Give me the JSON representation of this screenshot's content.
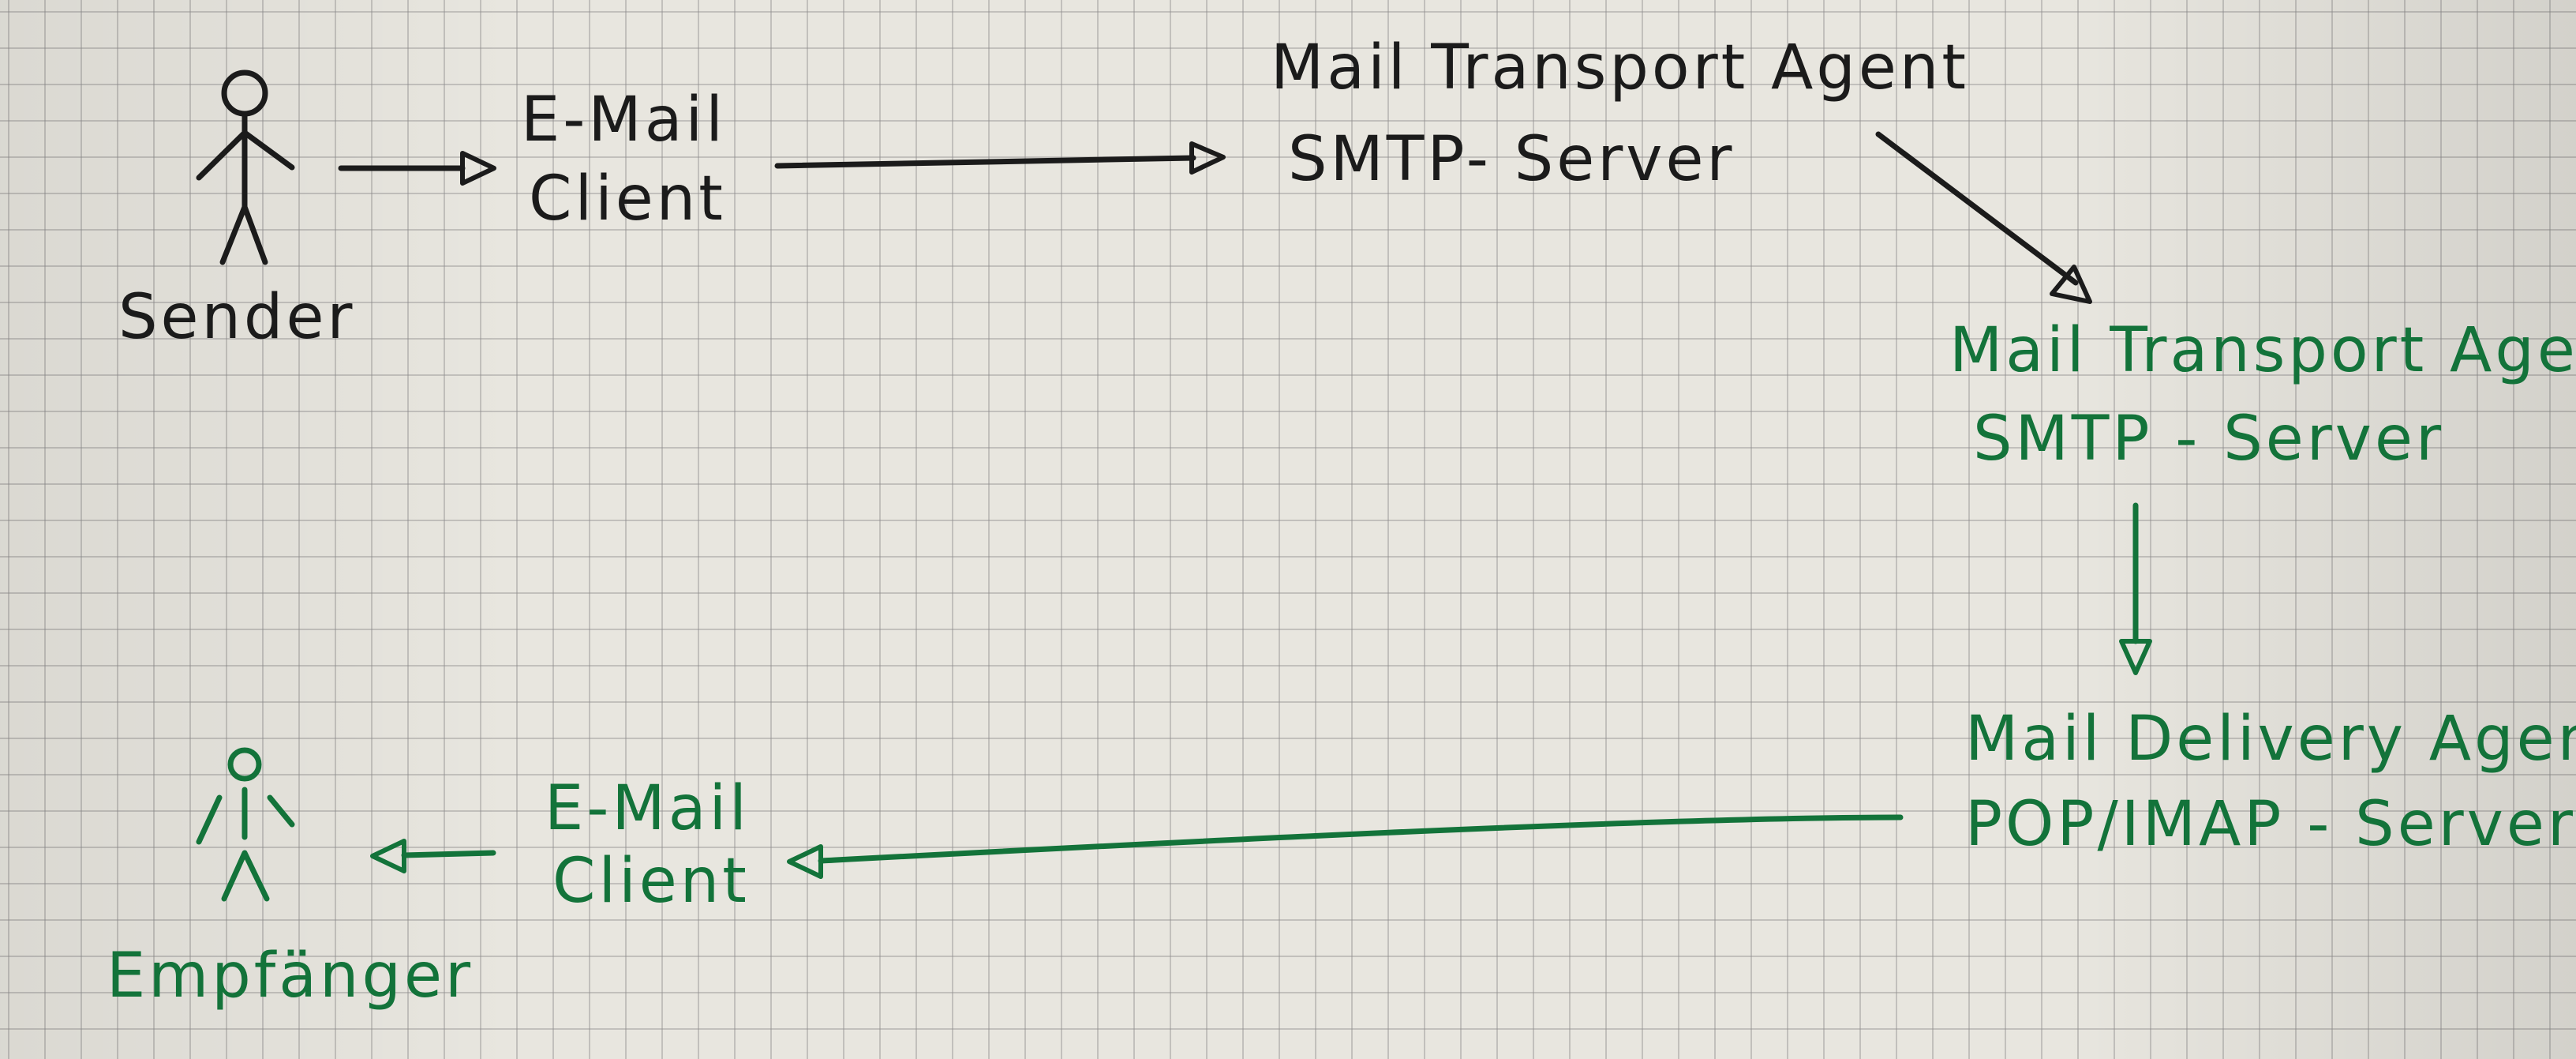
{
  "sender": {
    "label": "Sender"
  },
  "sender_client": {
    "line1": "E-Mail",
    "line2": "Client"
  },
  "mta_sender": {
    "line1": "Mail Transport Agent",
    "line2": "SMTP- Server"
  },
  "mta_receiver": {
    "line1": "Mail Transport Agent",
    "line2": "SMTP - Server"
  },
  "mda": {
    "line1": "Mail Delivery Agent",
    "line2": "POP/IMAP - Server"
  },
  "receiver_client": {
    "line1": "E-Mail",
    "line2": "Client"
  },
  "receiver": {
    "label": "Empfänger"
  },
  "colors": {
    "ink_black": "#1b1b1b",
    "ink_green": "#13733a",
    "paper": "#e8e6df",
    "grid": "#8c8c8c"
  }
}
